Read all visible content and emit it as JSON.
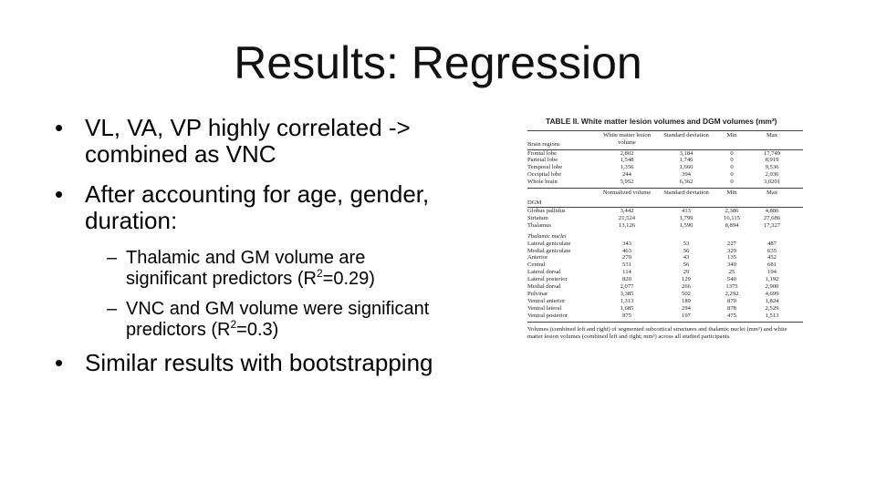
{
  "slide": {
    "title": "Results: Regression",
    "bullets": {
      "b1": "VL, VA, VP highly correlated -> combined as VNC",
      "b2": "After accounting for age, gender, duration:",
      "b2_sub1_pre": "Thalamic and GM volume are significant predictors (R",
      "b2_sub1_sup": "2",
      "b2_sub1_post": "=0.29)",
      "b2_sub2_pre": "VNC and GM volume were significant predictors (R",
      "b2_sub2_sup": "2",
      "b2_sub2_post": "=0.3)",
      "b3": "Similar results with bootstrapping",
      "bullet_glyph": "•",
      "dash_glyph": "–"
    }
  },
  "table": {
    "caption": "TABLE II. White matter lesion volumes and DGM volumes (mm³)",
    "header1": [
      "Brain regions",
      "White matter lesion volume",
      "Standard deviation",
      "Min",
      "Max"
    ],
    "rows1": [
      [
        "Frontal lobe",
        "2,802",
        "3,184",
        "0",
        "17,749"
      ],
      [
        "Parietal lobe",
        "1,548",
        "1,746",
        "0",
        "8,919"
      ],
      [
        "Temporal lobe",
        "1,356",
        "1,660",
        "0",
        "9,536"
      ],
      [
        "Occipital lobe",
        "244",
        "394",
        "0",
        "2,036"
      ],
      [
        "Whole brain",
        "5,952",
        "6,362",
        "0",
        "3,0201"
      ]
    ],
    "header2": [
      "DGM",
      "Normalized volume",
      "Standard deviation",
      "Min",
      "Max"
    ],
    "rows2": [
      [
        "Globus pallidus",
        "3,442",
        "413",
        "2,386",
        "4,886"
      ],
      [
        "Striatum",
        "21,524",
        "1,799",
        "16,115",
        "27,686"
      ],
      [
        "Thalamus",
        "13,126",
        "1,590",
        "8,894",
        "17,327"
      ]
    ],
    "subheading": "Thalamic nuclei",
    "rows3": [
      [
        "Lateral geniculate",
        "343",
        "53",
        "227",
        "487"
      ],
      [
        "Medial geniculate",
        "463",
        "56",
        "329",
        "635"
      ],
      [
        "Anterior",
        "270",
        "43",
        "135",
        "452"
      ],
      [
        "Central",
        "531",
        "56",
        "349",
        "681"
      ],
      [
        "Lateral dorsal",
        "114",
        "29",
        "25",
        "194"
      ],
      [
        "Lateral posterior",
        "820",
        "129",
        "540",
        "1,192"
      ],
      [
        "Medial dorsal",
        "2,077",
        "266",
        "1375",
        "2,900"
      ],
      [
        "Pulvinar",
        "3,385",
        "502",
        "2,292",
        "4,699"
      ],
      [
        "Ventral anterior",
        "1,313",
        "189",
        "870",
        "1,824"
      ],
      [
        "Ventral lateral",
        "1,685",
        "294",
        "878",
        "2,529"
      ],
      [
        "Ventral posterior",
        "975",
        "197",
        "475",
        "1,513"
      ]
    ],
    "footnote": "Volumes (combined left and right) of segmented subcortical structures and thalamic nuclei (mm³) and white matter lesion volumes (combined left and right; mm³) across all studied participants."
  }
}
